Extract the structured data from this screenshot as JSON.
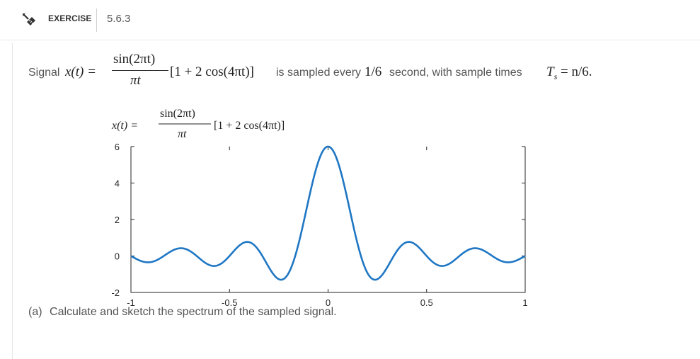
{
  "header": {
    "icon": "pencil-ruler-icon",
    "label": "EXERCISE",
    "number": "5.6.3"
  },
  "problem": {
    "signal_word": "Signal",
    "lhs": "x(t) =",
    "numerator": "sin(2πt)",
    "denominator": "πt",
    "bracket": "[1 + 2 cos(4πt)]",
    "sampled_text": "is sampled every",
    "interval": "1/6",
    "second_text": "second, with sample times",
    "ts_lhs": "T",
    "ts_sub": "s",
    "ts_rhs": "= n/6."
  },
  "chart_data": {
    "type": "line",
    "title_lhs": "x(t) =",
    "title_numerator": "sin(2πt)",
    "title_denominator": "πt",
    "title_bracket": "[1 + 2 cos(4πt)]",
    "xlabel": "",
    "ylabel": "",
    "xlim": [
      -1,
      1
    ],
    "ylim": [
      -2,
      6
    ],
    "xticks": [
      -1,
      -0.5,
      0,
      0.5,
      1
    ],
    "xtick_labels": [
      "-1",
      "-0.5",
      "0",
      "0.5",
      "1"
    ],
    "yticks": [
      -2,
      0,
      2,
      4,
      6
    ],
    "ytick_labels": [
      "-2",
      "0",
      "2",
      "4",
      "6"
    ],
    "grid": false,
    "line_color": "#1f77c4",
    "series": [
      {
        "function": "sin(2πt)/(πt) · [1 + 2 cos(4πt)]",
        "x_range": [
          -1,
          1
        ]
      }
    ]
  },
  "part_a": {
    "label": "(a)",
    "text": "Calculate and sketch the spectrum of the sampled signal."
  }
}
